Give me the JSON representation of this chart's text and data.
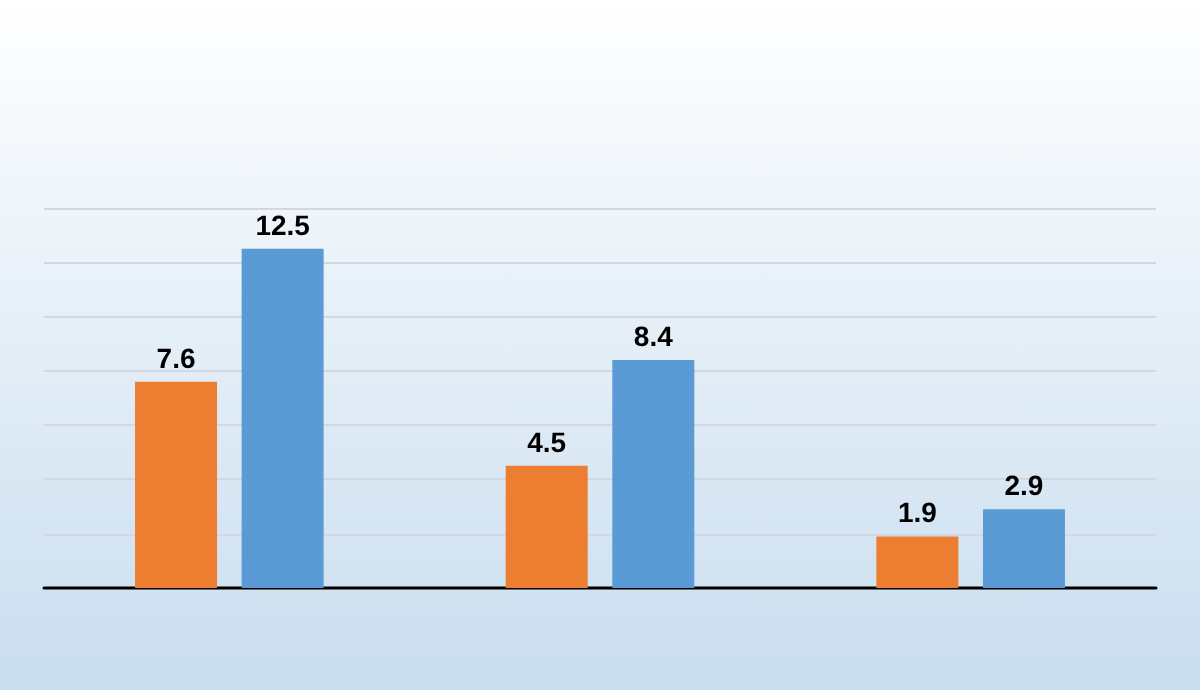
{
  "chart_data": {
    "type": "bar",
    "categories": [
      null,
      null,
      null
    ],
    "series": [
      {
        "color": "#ed7d31",
        "values": [
          7.6,
          4.5,
          1.9
        ]
      },
      {
        "color": "#5b9bd5",
        "values": [
          12.5,
          8.4,
          2.9
        ]
      }
    ],
    "ylim": [
      0,
      14
    ],
    "yticks": [
      {
        "value": 0,
        "label": null
      },
      {
        "value": 2,
        "label": null
      },
      {
        "value": 4,
        "label": null
      },
      {
        "value": 6,
        "label": null
      },
      {
        "value": 8,
        "label": null
      },
      {
        "value": 10,
        "label": null
      },
      {
        "value": 12,
        "label": null
      },
      {
        "value": 14,
        "label": null
      }
    ],
    "grid": "y",
    "data_labels": true
  }
}
